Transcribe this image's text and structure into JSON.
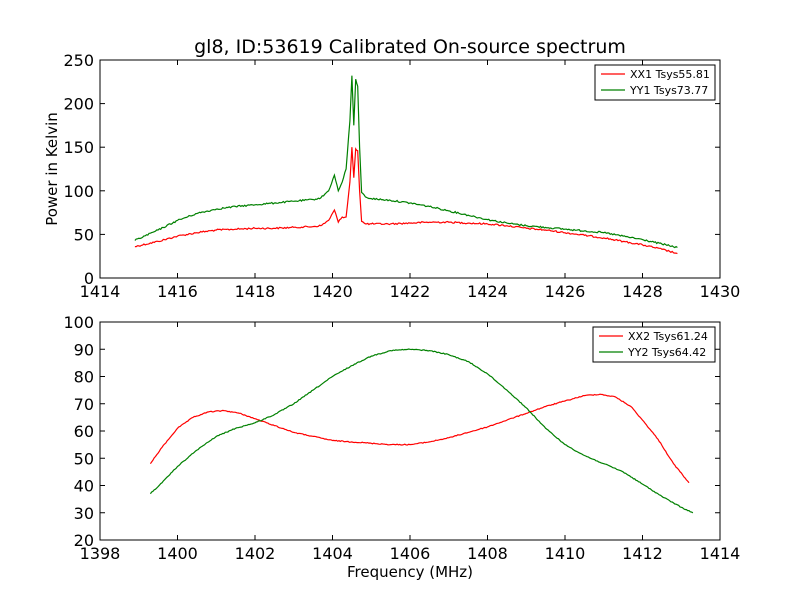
{
  "chart_data": [
    {
      "type": "line",
      "title": "gl8, ID:53619 Calibrated On-source spectrum",
      "xlabel": "",
      "ylabel": "Power in Kelvin",
      "xlim": [
        1414,
        1430
      ],
      "ylim": [
        0,
        250
      ],
      "xticks": [
        "1414",
        "1416",
        "1418",
        "1420",
        "1422",
        "1424",
        "1426",
        "1428",
        "1430"
      ],
      "yticks": [
        "0",
        "50",
        "100",
        "150",
        "200",
        "250"
      ],
      "grid": false,
      "legend_position": "top-right",
      "series": [
        {
          "name": "XX1 Tsys55.81",
          "color": "#ff0000",
          "x": [
            1414.9,
            1415.5,
            1416,
            1416.5,
            1417,
            1417.5,
            1418,
            1418.5,
            1419,
            1419.5,
            1419.7,
            1419.9,
            1420.05,
            1420.15,
            1420.25,
            1420.35,
            1420.45,
            1420.5,
            1420.55,
            1420.6,
            1420.65,
            1420.7,
            1420.75,
            1420.85,
            1421,
            1421.5,
            1422,
            1422.5,
            1423,
            1423.5,
            1424,
            1424.5,
            1425,
            1425.5,
            1426,
            1426.5,
            1427,
            1427.5,
            1428,
            1428.5,
            1428.9
          ],
          "y": [
            36,
            42,
            48,
            52,
            55,
            56,
            57,
            57,
            58,
            59,
            60,
            66,
            78,
            64,
            70,
            70,
            110,
            150,
            115,
            148,
            146,
            100,
            65,
            62,
            62,
            62,
            63,
            64,
            64,
            63,
            62,
            60,
            57,
            55,
            52,
            49,
            46,
            42,
            38,
            33,
            28
          ]
        },
        {
          "name": "YY1 Tsys73.77",
          "color": "#008000",
          "x": [
            1414.9,
            1415.5,
            1416,
            1416.5,
            1417,
            1417.5,
            1418,
            1418.5,
            1419,
            1419.5,
            1419.7,
            1419.9,
            1420.05,
            1420.15,
            1420.25,
            1420.35,
            1420.45,
            1420.5,
            1420.55,
            1420.6,
            1420.65,
            1420.7,
            1420.75,
            1420.85,
            1421,
            1421.5,
            1422,
            1422.5,
            1423,
            1423.5,
            1424,
            1424.5,
            1425,
            1425.5,
            1426,
            1426.5,
            1427,
            1427.5,
            1428,
            1428.5,
            1428.9
          ],
          "y": [
            43,
            55,
            66,
            74,
            79,
            82,
            84,
            86,
            88,
            90,
            92,
            100,
            118,
            100,
            110,
            125,
            180,
            232,
            175,
            228,
            220,
            150,
            98,
            93,
            91,
            89,
            86,
            82,
            77,
            72,
            67,
            63,
            60,
            58,
            56,
            54,
            52,
            48,
            44,
            39,
            35
          ]
        }
      ]
    },
    {
      "type": "line",
      "title": "",
      "xlabel": "Frequency (MHz)",
      "ylabel": "",
      "xlim": [
        1398,
        1414
      ],
      "ylim": [
        20,
        100
      ],
      "xticks": [
        "1398",
        "1400",
        "1402",
        "1404",
        "1406",
        "1408",
        "1410",
        "1412",
        "1414"
      ],
      "yticks": [
        "20",
        "30",
        "40",
        "50",
        "60",
        "70",
        "80",
        "90",
        "100"
      ],
      "grid": false,
      "legend_position": "top-right",
      "series": [
        {
          "name": "XX2 Tsys61.24",
          "color": "#ff0000",
          "x": [
            1399.3,
            1399.6,
            1400,
            1400.4,
            1400.8,
            1401.2,
            1401.6,
            1402,
            1402.5,
            1403,
            1403.5,
            1404,
            1404.5,
            1405,
            1405.5,
            1406,
            1406.5,
            1407,
            1407.5,
            1408,
            1408.5,
            1409,
            1409.5,
            1410,
            1410.5,
            1410.9,
            1411.3,
            1411.7,
            1412,
            1412.4,
            1412.8,
            1413.2
          ],
          "y": [
            48,
            54,
            61,
            65,
            67,
            67.5,
            66.5,
            64.5,
            62,
            59.5,
            58,
            56.5,
            56,
            55.5,
            55,
            55,
            56,
            57.5,
            59.5,
            61.5,
            64,
            66.5,
            69,
            71,
            73,
            73.5,
            72.5,
            69,
            64,
            57,
            48,
            41
          ]
        },
        {
          "name": "YY2 Tsys64.42",
          "color": "#008000",
          "x": [
            1399.3,
            1399.6,
            1400,
            1400.5,
            1401,
            1401.5,
            1402,
            1402.5,
            1403,
            1403.5,
            1404,
            1404.5,
            1405,
            1405.5,
            1406,
            1406.5,
            1407,
            1407.5,
            1408,
            1408.5,
            1409,
            1409.5,
            1410,
            1410.5,
            1411,
            1411.5,
            1412,
            1412.5,
            1413,
            1413.3
          ],
          "y": [
            37,
            41,
            47,
            53,
            58,
            61,
            63,
            66,
            70,
            75,
            80,
            84,
            87.5,
            89.5,
            90,
            89.5,
            88,
            85.5,
            81,
            75,
            68.5,
            61,
            55,
            51,
            48,
            45,
            40.5,
            36,
            32,
            30
          ]
        }
      ]
    }
  ]
}
